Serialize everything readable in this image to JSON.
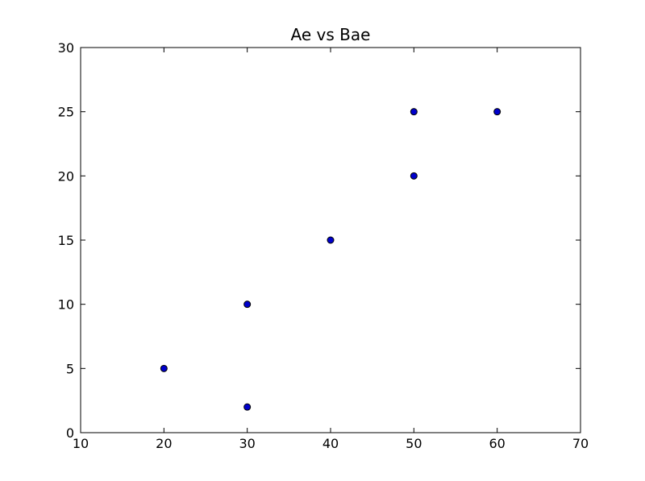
{
  "chart_data": {
    "type": "scatter",
    "title": "Ae vs Bae",
    "xlabel": "",
    "ylabel": "",
    "points": [
      {
        "x": 20,
        "y": 5
      },
      {
        "x": 30,
        "y": 2
      },
      {
        "x": 30,
        "y": 10
      },
      {
        "x": 40,
        "y": 15
      },
      {
        "x": 50,
        "y": 20
      },
      {
        "x": 50,
        "y": 25
      },
      {
        "x": 60,
        "y": 25
      }
    ],
    "xlim": [
      10,
      70
    ],
    "ylim": [
      0,
      30
    ],
    "xticks": [
      10,
      20,
      30,
      40,
      50,
      60,
      70
    ],
    "yticks": [
      0,
      5,
      10,
      15,
      20,
      25,
      30
    ],
    "grid": false,
    "legend": "none",
    "tick_direction": "in",
    "colors": {
      "marker_fill": "#0000cc",
      "marker_edge": "#000000",
      "spine": "#000000",
      "background": "#ffffff"
    }
  }
}
